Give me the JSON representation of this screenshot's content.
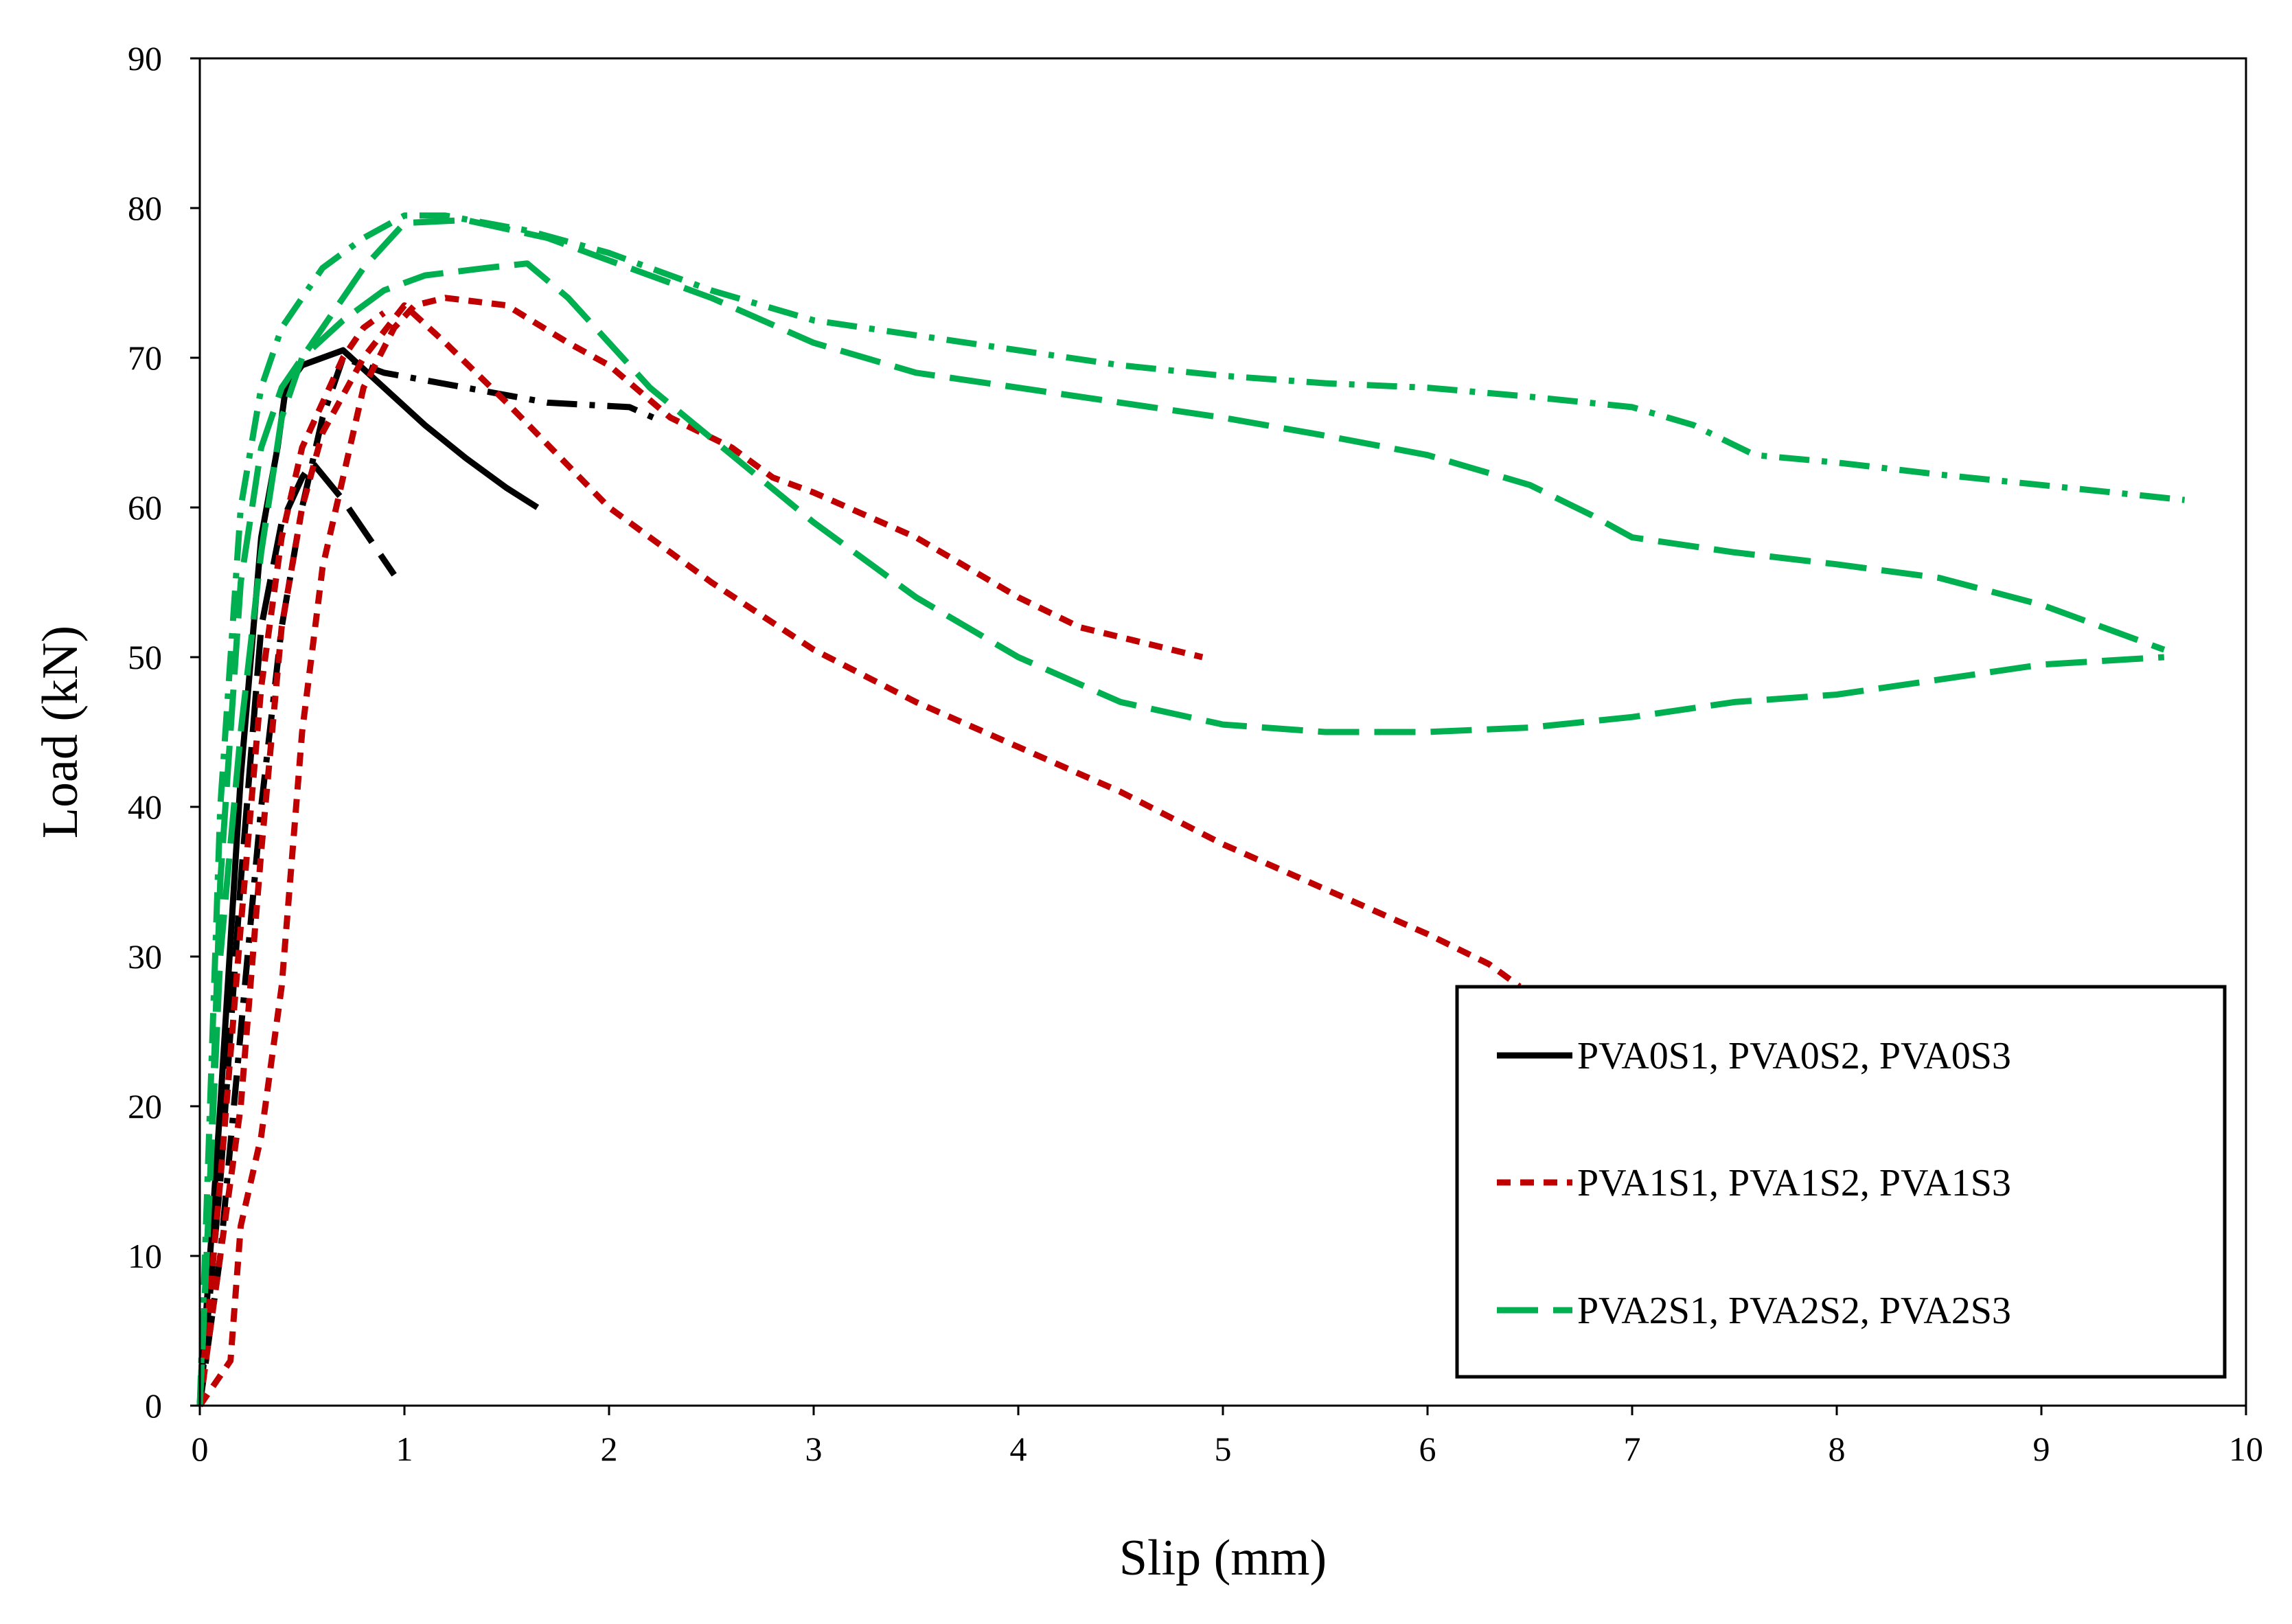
{
  "chart_data": {
    "type": "line",
    "title": "",
    "xlabel": "Slip (mm)",
    "ylabel": "Load (kN)",
    "xlim": [
      0,
      10
    ],
    "ylim": [
      0,
      90
    ],
    "xticks": [
      0,
      1,
      2,
      3,
      4,
      5,
      6,
      7,
      8,
      9,
      10
    ],
    "yticks": [
      0,
      10,
      20,
      30,
      40,
      50,
      60,
      70,
      80,
      90
    ],
    "grid": false,
    "legend_position": "lower-right",
    "legend": [
      {
        "label": "PVA0S1, PVA0S2, PVA0S3",
        "color": "#000000",
        "style": "solid"
      },
      {
        "label": "PVA1S1, PVA1S2, PVA1S3",
        "color": "#c00000",
        "style": "dashed"
      },
      {
        "label": "PVA2S1, PVA2S2, PVA2S3",
        "color": "#00b050",
        "style": "longdash"
      }
    ],
    "series": [
      {
        "name": "PVA0S1",
        "group": 0,
        "color": "#000000",
        "style": "solid",
        "x": [
          0,
          0.1,
          0.2,
          0.3,
          0.38,
          0.42,
          0.5,
          0.7,
          0.9,
          1.1,
          1.3,
          1.5,
          1.65
        ],
        "y": [
          0,
          20,
          42,
          58,
          64,
          68,
          69.5,
          70.5,
          68,
          65.5,
          63.3,
          61.3,
          60
        ]
      },
      {
        "name": "PVA0S2",
        "group": 0,
        "color": "#000000",
        "style": "longdash",
        "x": [
          0,
          0.1,
          0.2,
          0.3,
          0.4,
          0.5,
          0.55,
          0.7,
          0.85,
          0.95
        ],
        "y": [
          0,
          15,
          35,
          52,
          59,
          62,
          63,
          60.5,
          57.5,
          55.5
        ]
      },
      {
        "name": "PVA0S3",
        "group": 0,
        "color": "#000000",
        "style": "dashdot",
        "x": [
          0,
          0.1,
          0.2,
          0.3,
          0.4,
          0.5,
          0.6,
          0.7,
          0.9,
          1.3,
          1.7,
          2.1,
          2.25
        ],
        "y": [
          0,
          10,
          25,
          40,
          52,
          60,
          66,
          70,
          69,
          68,
          67,
          66.7,
          65.8
        ]
      },
      {
        "name": "PVA1S1",
        "group": 1,
        "color": "#c00000",
        "style": "dashed",
        "x": [
          0,
          0.15,
          0.2,
          0.3,
          0.4,
          0.5,
          0.6,
          0.7,
          0.8,
          0.95,
          1.05,
          1.2,
          1.5,
          1.8,
          2.0,
          2.3,
          2.6,
          2.8,
          3.0,
          3.5,
          4.0,
          4.3,
          4.6,
          4.9
        ],
        "y": [
          0,
          3,
          12,
          18,
          28,
          45,
          56,
          62,
          68,
          72,
          73.5,
          74,
          73.5,
          71,
          69.5,
          66,
          64,
          62,
          61,
          58,
          54,
          52,
          51,
          50
        ]
      },
      {
        "name": "PVA1S2",
        "group": 1,
        "color": "#c00000",
        "style": "dashed",
        "x": [
          0,
          0.2,
          0.3,
          0.4,
          0.5,
          0.6,
          0.8,
          1.0,
          1.2,
          1.5,
          2.0,
          2.5,
          3.0,
          3.5,
          4.0,
          4.5,
          5.0,
          5.5,
          6.0,
          6.3,
          6.45
        ],
        "y": [
          0,
          20,
          37,
          52,
          60,
          65,
          70,
          73.5,
          71,
          67,
          60,
          55,
          50.5,
          47,
          44,
          41,
          37.5,
          34.5,
          31.5,
          29.5,
          28
        ]
      },
      {
        "name": "PVA1S3",
        "group": 1,
        "color": "#c00000",
        "style": "dashed",
        "x": [
          0,
          0.1,
          0.2,
          0.3,
          0.4,
          0.5,
          0.6,
          0.7,
          0.8,
          0.9
        ],
        "y": [
          0,
          15,
          32,
          48,
          58,
          64,
          67,
          70,
          72,
          73
        ]
      },
      {
        "name": "PVA2S1",
        "group": 2,
        "color": "#00b050",
        "style": "longdash",
        "x": [
          0,
          0.05,
          0.1,
          0.2,
          0.3,
          0.4,
          0.5,
          0.7,
          0.9,
          1.1,
          1.4,
          1.6,
          1.8,
          2.0,
          2.2,
          2.6,
          3.0,
          3.5,
          4.0,
          4.5,
          5.0,
          5.5,
          6.0,
          6.5,
          7.0,
          7.5,
          8.0,
          8.5,
          9.0,
          9.6
        ],
        "y": [
          0,
          15,
          30,
          45,
          57,
          66,
          70,
          72.5,
          74.5,
          75.5,
          76,
          76.3,
          74,
          71,
          68,
          63.5,
          59,
          54,
          50,
          47,
          45.5,
          45,
          45,
          45.3,
          46,
          47,
          47.5,
          48.5,
          49.5,
          50
        ]
      },
      {
        "name": "PVA2S2",
        "group": 2,
        "color": "#00b050",
        "style": "dashdot",
        "x": [
          0,
          0.05,
          0.1,
          0.2,
          0.3,
          0.4,
          0.6,
          0.8,
          1.0,
          1.2,
          1.6,
          2.0,
          2.5,
          3.0,
          3.5,
          4.0,
          4.5,
          5.0,
          5.5,
          6.0,
          6.5,
          7.0,
          7.3,
          7.6,
          8.0,
          8.5,
          9.0,
          9.7
        ],
        "y": [
          0,
          20,
          40,
          60,
          68,
          72,
          76,
          78,
          79.5,
          79.5,
          78.5,
          77,
          74.5,
          72.5,
          71.5,
          70.5,
          69.5,
          68.8,
          68.3,
          68,
          67.4,
          66.7,
          65.5,
          63.5,
          63,
          62.2,
          61.5,
          60.5
        ]
      },
      {
        "name": "PVA2S3",
        "group": 2,
        "color": "#00b050",
        "style": "longdash",
        "x": [
          0,
          0.05,
          0.1,
          0.2,
          0.3,
          0.4,
          0.5,
          0.6,
          0.8,
          1.0,
          1.3,
          1.7,
          2.0,
          2.5,
          3.0,
          3.5,
          4.0,
          4.5,
          5.0,
          5.5,
          6.0,
          6.5,
          6.8,
          7.0,
          7.5,
          8.0,
          8.5,
          9.0,
          9.3,
          9.6
        ],
        "y": [
          0,
          15,
          35,
          55,
          64,
          68,
          70,
          72,
          76,
          79,
          79.2,
          78,
          76.5,
          74,
          71,
          69,
          68,
          67,
          66,
          64.8,
          63.5,
          61.5,
          59.5,
          58,
          57,
          56.2,
          55.3,
          53.5,
          52,
          50.5
        ]
      }
    ]
  }
}
